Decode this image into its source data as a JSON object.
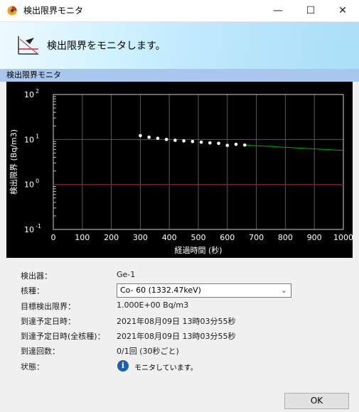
{
  "window": {
    "title": "検出限界モニタ",
    "controls": {
      "minimize": "—",
      "maximize": "☐",
      "close": "✕"
    }
  },
  "banner": {
    "text": "検出限界をモニタします。"
  },
  "section": {
    "label": "検出限界モニタ"
  },
  "chart_data": {
    "type": "line",
    "xlabel": "経過時間 (秒)",
    "ylabel": "検出限界 (Bq/m3)",
    "x_ticks": [
      "0",
      "100",
      "200",
      "300",
      "400",
      "500",
      "600",
      "700",
      "800",
      "900",
      "1000"
    ],
    "y_ticks": [
      {
        "base": "10",
        "exp": "2"
      },
      {
        "base": "10",
        "exp": "1"
      },
      {
        "base": "10",
        "exp": "0"
      },
      {
        "base": "10",
        "exp": "-1"
      }
    ],
    "xlim": [
      0,
      1000
    ],
    "ylim": [
      0.1,
      100
    ],
    "y_scale": "log",
    "grid": true,
    "threshold": 1.0,
    "threshold_color": "#d00000",
    "trend_color": "#00b000",
    "point_color": "#ffffff",
    "points": [
      {
        "x": 300,
        "y": 12.2
      },
      {
        "x": 330,
        "y": 11.2
      },
      {
        "x": 360,
        "y": 10.6
      },
      {
        "x": 390,
        "y": 10.0
      },
      {
        "x": 420,
        "y": 9.6
      },
      {
        "x": 450,
        "y": 9.3
      },
      {
        "x": 480,
        "y": 9.0
      },
      {
        "x": 510,
        "y": 8.7
      },
      {
        "x": 540,
        "y": 8.4
      },
      {
        "x": 570,
        "y": 8.2
      },
      {
        "x": 600,
        "y": 7.4
      },
      {
        "x": 630,
        "y": 7.8
      },
      {
        "x": 660,
        "y": 7.5
      }
    ],
    "trend_end": {
      "x": 1000,
      "y": 5.7
    }
  },
  "info": {
    "detector_label": "検出器：",
    "detector_value": "Ge-1",
    "nuclide_label": "核種：",
    "nuclide_value": "Co- 60 (1332.47keV)",
    "target_label": "目標検出限界：",
    "target_value": "1.000E+00 Bq/m3",
    "eta_label": "到達予定日時：",
    "eta_value": "2021年08月09日 13時03分55秒",
    "eta_all_label": "到達予定日時(全核種)：",
    "eta_all_value": "2021年08月09日 13時03分55秒",
    "count_label": "到達回数：",
    "count_value": "0/1回 (30秒ごと)",
    "status_label": "状態：",
    "status_icon": "info-icon",
    "status_value": "モニタしています。"
  },
  "footer": {
    "ok_label": "OK"
  }
}
